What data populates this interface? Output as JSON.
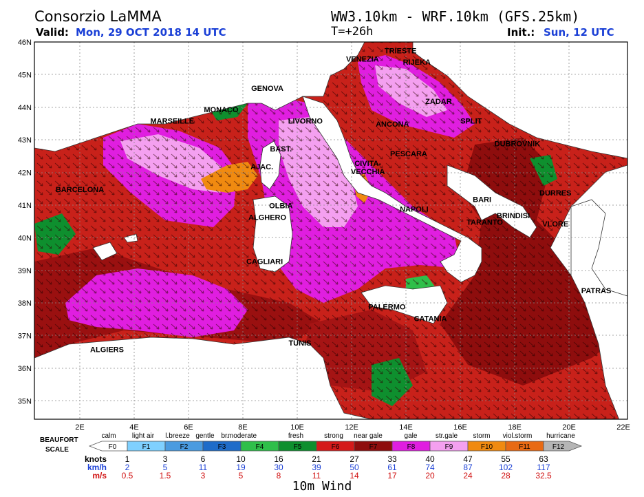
{
  "header": {
    "title": "Consorzio LaMMA",
    "valid_label": "Valid:",
    "valid_value": "Mon, 29 OCT 2018  14 UTC",
    "model": "WW3.10km - WRF.10km (GFS.25km)",
    "step": "T=+26h",
    "init_label": "Init.:",
    "init_value": "Sun, 12 UTC"
  },
  "map": {
    "lat_labels": [
      "46N",
      "45N",
      "44N",
      "43N",
      "42N",
      "41N",
      "40N",
      "39N",
      "38N",
      "37N",
      "36N",
      "35N"
    ],
    "lon_labels": [
      "2E",
      "4E",
      "6E",
      "8E",
      "10E",
      "12E",
      "14E",
      "16E",
      "18E",
      "20E",
      "22E"
    ],
    "cities": [
      {
        "name": "TRIESTE",
        "lon": 13.8,
        "lat": 45.65
      },
      {
        "name": "VENEZIA",
        "lon": 12.4,
        "lat": 45.4
      },
      {
        "name": "RIJEKA",
        "lon": 14.4,
        "lat": 45.3
      },
      {
        "name": "GENOVA",
        "lon": 8.9,
        "lat": 44.5
      },
      {
        "name": "MONACO",
        "lon": 7.2,
        "lat": 43.85
      },
      {
        "name": "MARSEILLE",
        "lon": 5.4,
        "lat": 43.5
      },
      {
        "name": "ZADAR",
        "lon": 15.2,
        "lat": 44.1
      },
      {
        "name": "SPLIT",
        "lon": 16.4,
        "lat": 43.5
      },
      {
        "name": "LIVORNO",
        "lon": 10.3,
        "lat": 43.5
      },
      {
        "name": "ANCONA",
        "lon": 13.5,
        "lat": 43.4
      },
      {
        "name": "DUBROVNIK",
        "lon": 18.1,
        "lat": 42.8
      },
      {
        "name": "BAST.",
        "lon": 9.4,
        "lat": 42.65
      },
      {
        "name": "PESCARA",
        "lon": 14.1,
        "lat": 42.5
      },
      {
        "name": "AJAC.",
        "lon": 8.7,
        "lat": 42.1
      },
      {
        "name": "CIVITA-",
        "lon": 12.6,
        "lat": 42.2
      },
      {
        "name": "VECCHIA",
        "lon": 12.6,
        "lat": 41.95
      },
      {
        "name": "BARCELONA",
        "lon": 2.0,
        "lat": 41.4
      },
      {
        "name": "DURRES",
        "lon": 19.5,
        "lat": 41.3
      },
      {
        "name": "BARI",
        "lon": 16.8,
        "lat": 41.1
      },
      {
        "name": "OLBIA",
        "lon": 9.4,
        "lat": 40.9
      },
      {
        "name": "NAPOLI",
        "lon": 14.3,
        "lat": 40.8
      },
      {
        "name": "ALGHERO",
        "lon": 8.9,
        "lat": 40.55
      },
      {
        "name": "BRINDISI",
        "lon": 17.95,
        "lat": 40.6
      },
      {
        "name": "TARANTO",
        "lon": 16.9,
        "lat": 40.4
      },
      {
        "name": "VLORE",
        "lon": 19.5,
        "lat": 40.35
      },
      {
        "name": "CAGLIARI",
        "lon": 8.8,
        "lat": 39.2
      },
      {
        "name": "PATRAS",
        "lon": 21.0,
        "lat": 38.3
      },
      {
        "name": "PALERMO",
        "lon": 13.3,
        "lat": 37.8
      },
      {
        "name": "CATANIA",
        "lon": 14.9,
        "lat": 37.45
      },
      {
        "name": "TUNIS",
        "lon": 10.1,
        "lat": 36.7
      },
      {
        "name": "ALGIERS",
        "lon": 3.0,
        "lat": 36.5
      }
    ]
  },
  "scale": {
    "title_line1": "BEAUFORT",
    "title_line2": "SCALE",
    "descriptions": [
      "calm",
      "light air",
      "l.breeze",
      "gentle",
      "br.",
      "moderate",
      "fresh",
      "strong",
      "near gale",
      "gale",
      "str.gale",
      "storm",
      "viol.storm",
      "hurricane"
    ],
    "forces": [
      "F0",
      "F1",
      "F2",
      "F3",
      "F4",
      "F5",
      "F6",
      "F7",
      "F8",
      "F9",
      "F10",
      "F11",
      "F12"
    ],
    "colors": [
      "#ffffff",
      "#7fd0ff",
      "#4a9be0",
      "#1f6cc9",
      "#2fbf4a",
      "#0e8f2e",
      "#d41a1a",
      "#8e0d0d",
      "#e01ee0",
      "#f4a0f0",
      "#f08a10",
      "#e86a14",
      "#b5b5b5"
    ],
    "units": [
      "knots",
      "km/h",
      "m/s"
    ],
    "knots": [
      "1",
      "3",
      "6",
      "10",
      "16",
      "21",
      "27",
      "33",
      "40",
      "47",
      "55",
      "63"
    ],
    "kmh": [
      "2",
      "5",
      "11",
      "19",
      "30",
      "39",
      "50",
      "61",
      "74",
      "87",
      "102",
      "117"
    ],
    "ms": [
      "0.5",
      "1.5",
      "3",
      "5",
      "8",
      "11",
      "14",
      "17",
      "20",
      "24",
      "28",
      "32,5"
    ]
  },
  "caption": "10m Wind",
  "colors": {
    "land": "#ffffff",
    "sea_base": "#c8211a",
    "grid": "#9a9a9a",
    "accent_blue": "#1a3fd6",
    "ms_red": "#d01010"
  }
}
